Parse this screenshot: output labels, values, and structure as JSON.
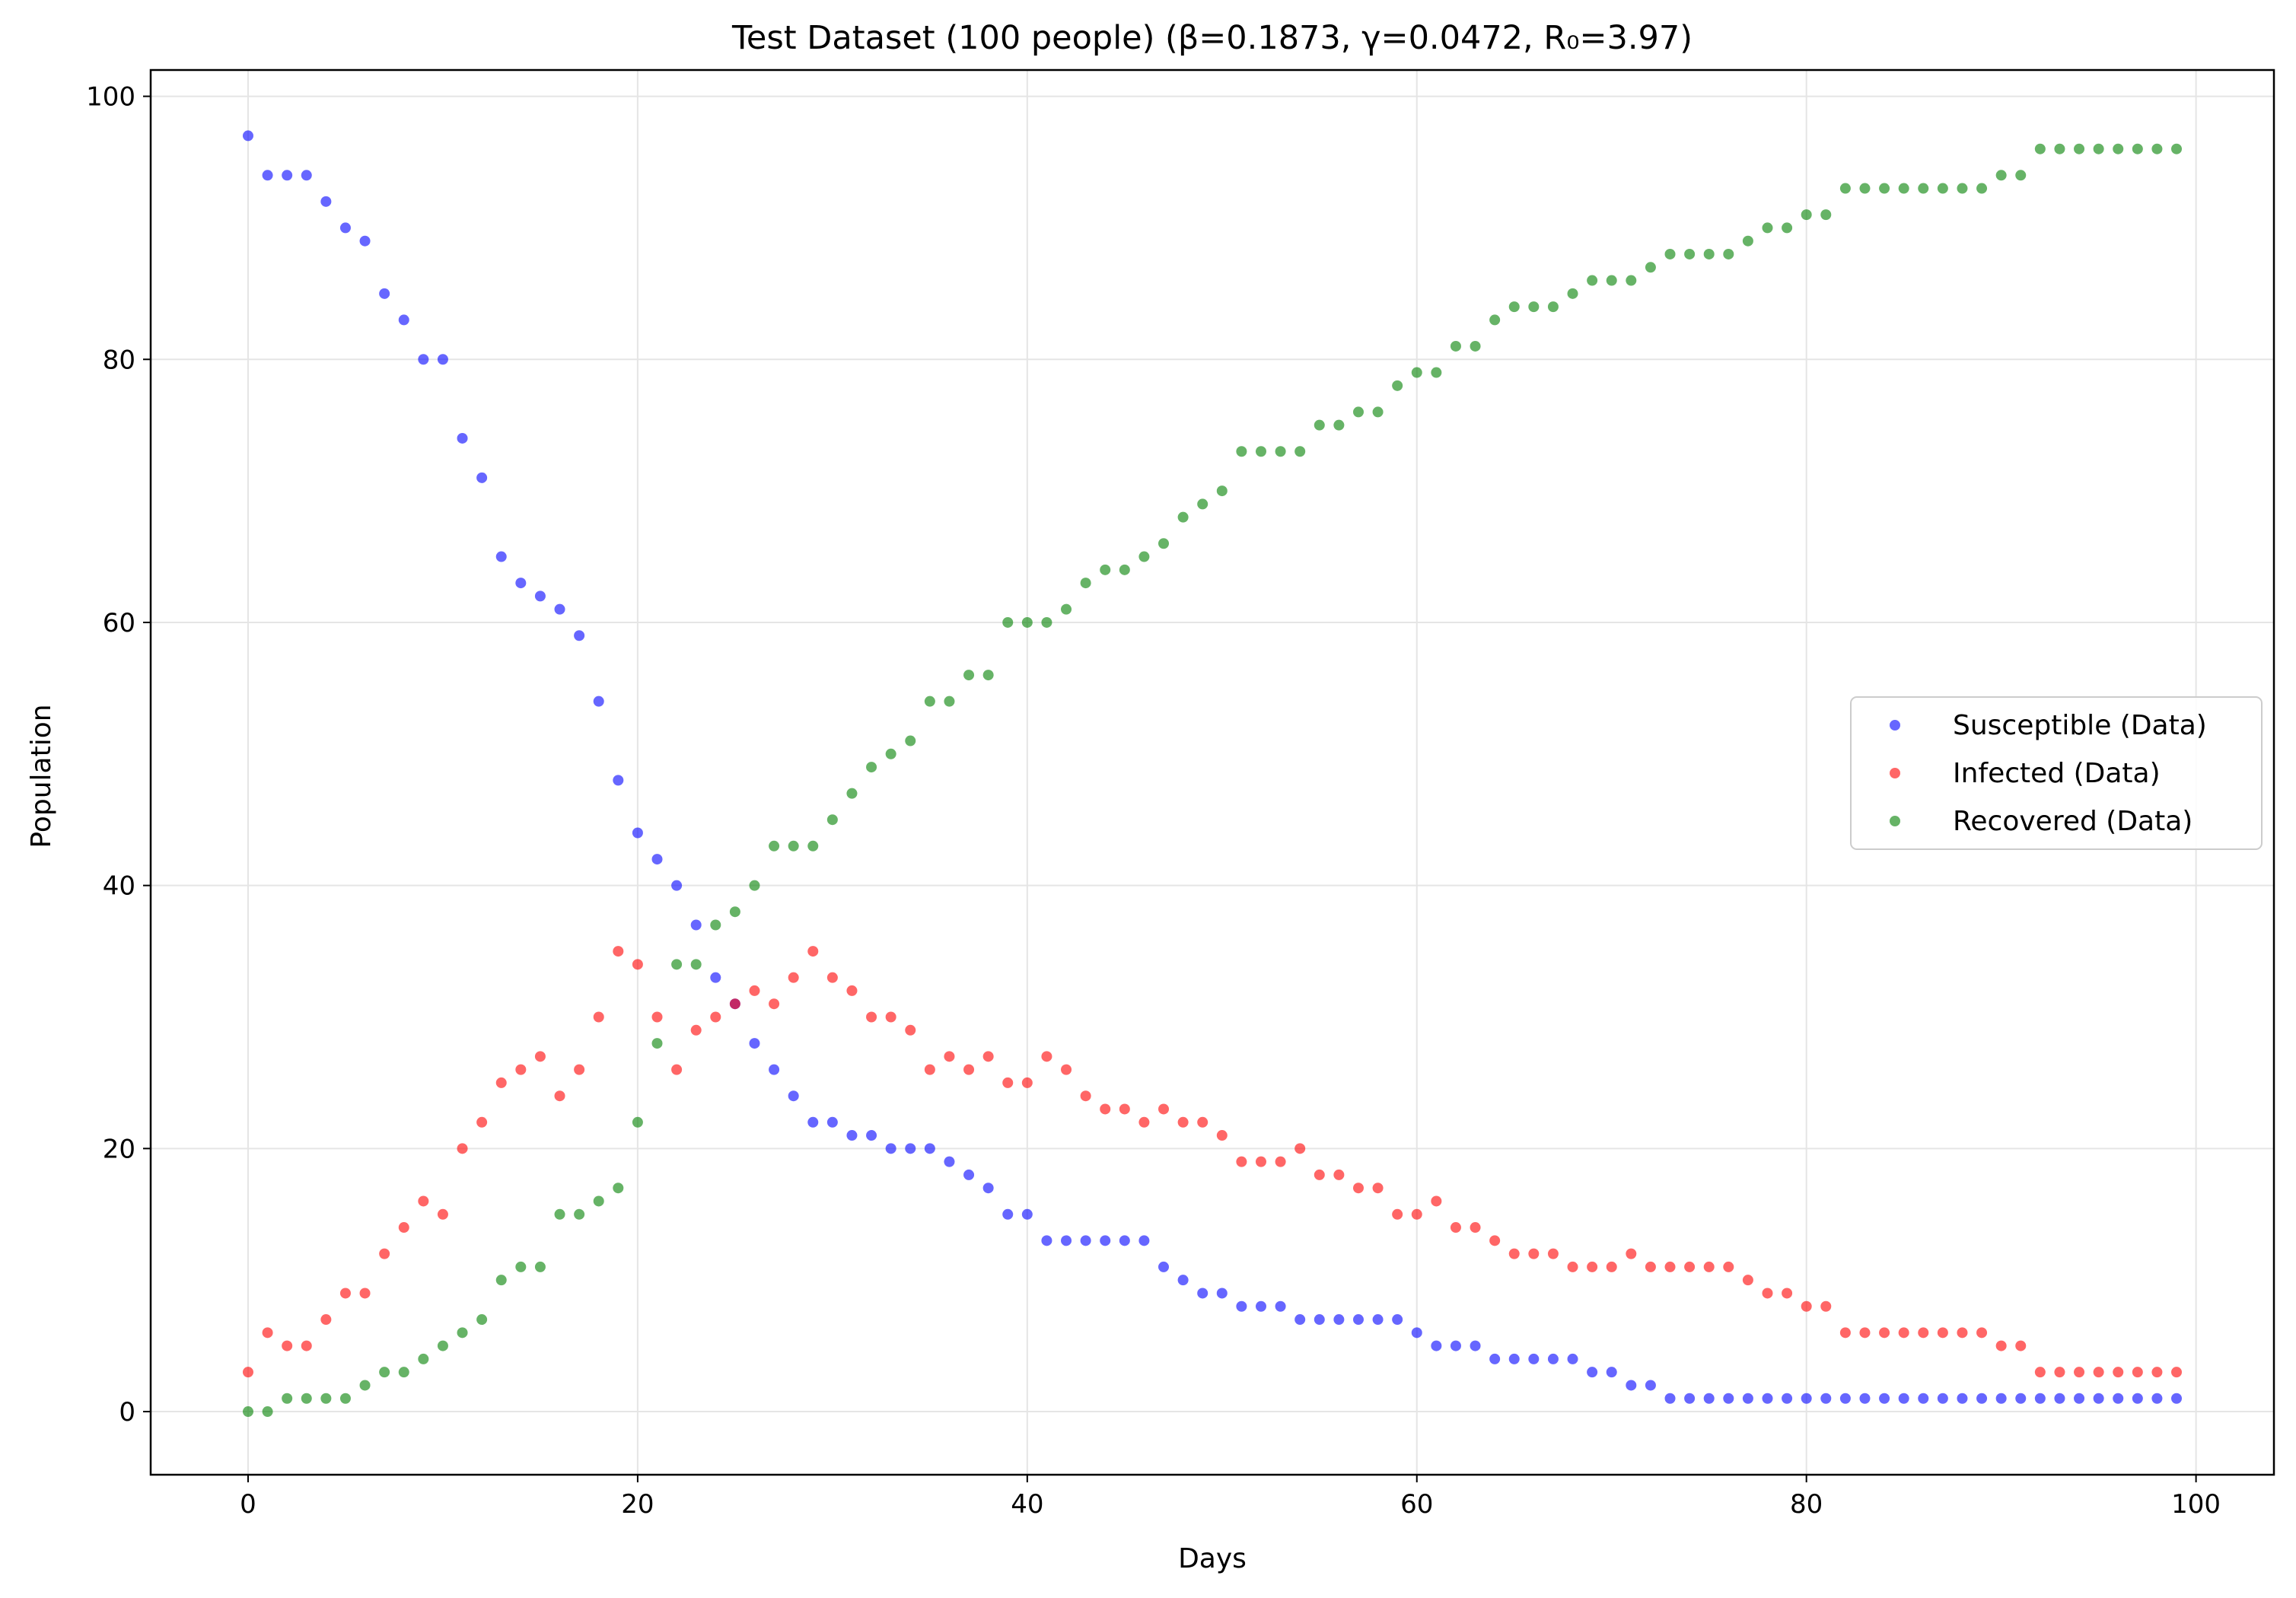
{
  "chart_data": {
    "type": "scatter",
    "title": "Test Dataset (100 people) (β=0.1873, γ=0.0472, R₀=3.97)",
    "xlabel": "Days",
    "ylabel": "Population",
    "xlim": [
      -5,
      104
    ],
    "ylim": [
      -4.8,
      102
    ],
    "xticks": [
      0,
      20,
      40,
      60,
      80,
      100
    ],
    "yticks": [
      0,
      20,
      40,
      60,
      80,
      100
    ],
    "grid": true,
    "legend_position": "center-right",
    "x": [
      0,
      1,
      2,
      3,
      4,
      5,
      6,
      7,
      8,
      9,
      10,
      11,
      12,
      13,
      14,
      15,
      16,
      17,
      18,
      19,
      20,
      21,
      22,
      23,
      24,
      25,
      26,
      27,
      28,
      29,
      30,
      31,
      32,
      33,
      34,
      35,
      36,
      37,
      38,
      39,
      40,
      41,
      42,
      43,
      44,
      45,
      46,
      47,
      48,
      49,
      50,
      51,
      52,
      53,
      54,
      55,
      56,
      57,
      58,
      59,
      60,
      61,
      62,
      63,
      64,
      65,
      66,
      67,
      68,
      69,
      70,
      71,
      72,
      73,
      74,
      75,
      76,
      77,
      78,
      79,
      80,
      81,
      82,
      83,
      84,
      85,
      86,
      87,
      88,
      89,
      90,
      91,
      92,
      93,
      94,
      95,
      96,
      97,
      98,
      99
    ],
    "series": [
      {
        "name": "Susceptible (Data)",
        "color": "#0000ff",
        "values": [
          97,
          94,
          94,
          94,
          92,
          90,
          89,
          85,
          83,
          80,
          80,
          74,
          71,
          65,
          63,
          62,
          61,
          59,
          54,
          48,
          44,
          42,
          40,
          37,
          33,
          31,
          28,
          26,
          24,
          22,
          22,
          21,
          21,
          20,
          20,
          20,
          19,
          18,
          17,
          15,
          15,
          13,
          13,
          13,
          13,
          13,
          13,
          11,
          10,
          9,
          9,
          8,
          8,
          8,
          7,
          7,
          7,
          7,
          7,
          7,
          6,
          5,
          5,
          5,
          4,
          4,
          4,
          4,
          4,
          3,
          3,
          2,
          2,
          1,
          1,
          1,
          1,
          1,
          1,
          1,
          1,
          1,
          1,
          1,
          1,
          1,
          1,
          1,
          1,
          1,
          1,
          1,
          1,
          1,
          1,
          1,
          1,
          1,
          1,
          1
        ]
      },
      {
        "name": "Infected (Data)",
        "color": "#ff0000",
        "values": [
          3,
          6,
          5,
          5,
          7,
          9,
          9,
          12,
          14,
          16,
          15,
          20,
          22,
          25,
          26,
          27,
          24,
          26,
          30,
          35,
          34,
          30,
          26,
          29,
          30,
          31,
          32,
          31,
          33,
          35,
          33,
          32,
          30,
          30,
          29,
          26,
          27,
          26,
          27,
          25,
          25,
          27,
          26,
          24,
          23,
          23,
          22,
          23,
          22,
          22,
          21,
          19,
          19,
          19,
          20,
          18,
          18,
          17,
          17,
          15,
          15,
          16,
          14,
          14,
          13,
          12,
          12,
          12,
          11,
          11,
          11,
          12,
          11,
          11,
          11,
          11,
          11,
          10,
          9,
          9,
          8,
          8,
          6,
          6,
          6,
          6,
          6,
          6,
          6,
          6,
          5,
          5,
          3,
          3,
          3,
          3,
          3,
          3,
          3,
          3
        ]
      },
      {
        "name": "Recovered (Data)",
        "color": "#008000",
        "values": [
          0,
          0,
          1,
          1,
          1,
          1,
          2,
          3,
          3,
          4,
          5,
          6,
          7,
          10,
          11,
          11,
          15,
          15,
          16,
          17,
          22,
          28,
          34,
          34,
          37,
          38,
          40,
          43,
          43,
          43,
          45,
          47,
          49,
          50,
          51,
          54,
          54,
          56,
          56,
          60,
          60,
          60,
          61,
          63,
          64,
          64,
          65,
          66,
          68,
          69,
          70,
          73,
          73,
          73,
          73,
          75,
          75,
          76,
          76,
          78,
          79,
          79,
          81,
          81,
          83,
          84,
          84,
          84,
          85,
          86,
          86,
          86,
          87,
          88,
          88,
          88,
          88,
          89,
          90,
          90,
          91,
          91,
          93,
          93,
          93,
          93,
          93,
          93,
          93,
          93,
          94,
          94,
          96,
          96,
          96,
          96,
          96,
          96,
          96,
          96
        ]
      }
    ]
  }
}
